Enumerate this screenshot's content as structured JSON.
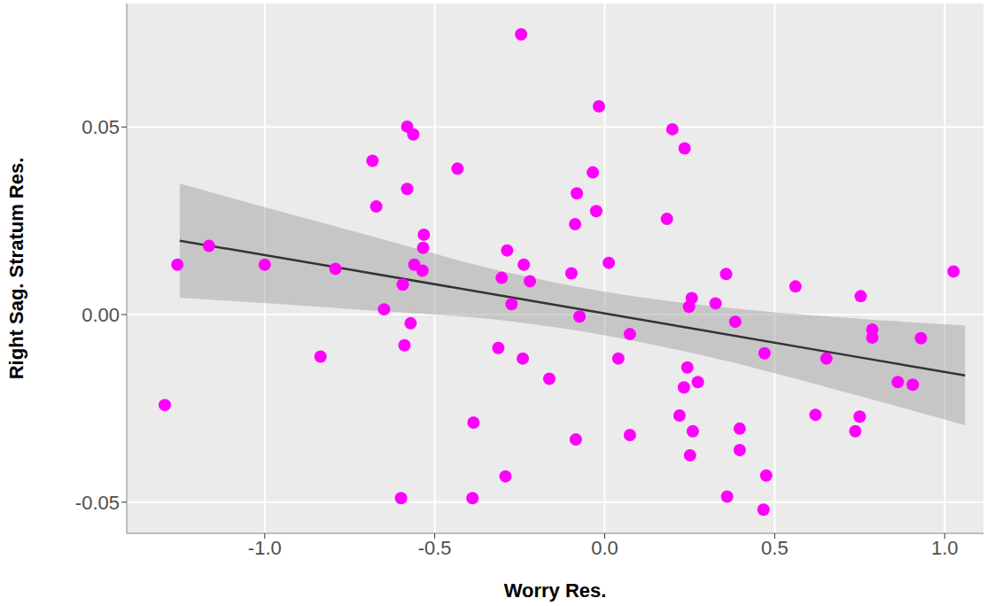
{
  "chart_data": {
    "type": "scatter",
    "x_label": "Worry Res.",
    "y_label": "Right Sag. Stratum Res.",
    "xlim": [
      -1.406,
      1.114
    ],
    "ylim": [
      -0.0583,
      0.0829
    ],
    "xticks": [
      {
        "value": -1,
        "label": "-1.0"
      },
      -0.5,
      {
        "value": 0,
        "label": "0.0"
      },
      0.5,
      {
        "value": 1,
        "label": "1.0"
      }
    ],
    "yticks": [
      -0.05,
      {
        "value": 0,
        "label": "0.00"
      },
      0.05
    ],
    "grid": true,
    "series": [
      {
        "type": "scatter",
        "marker": "circle",
        "color": "#ff00ff",
        "x": [
          -1.294,
          -1.257,
          -1.164,
          -1.0,
          -0.792,
          -0.836,
          -0.683,
          -0.672,
          -0.649,
          -0.581,
          -0.563,
          -0.581,
          -0.594,
          -0.589,
          -0.599,
          -0.571,
          -0.532,
          -0.534,
          -0.56,
          -0.536,
          -0.433,
          -0.386,
          -0.389,
          -0.287,
          -0.303,
          -0.274,
          -0.313,
          -0.292,
          -0.246,
          -0.238,
          -0.22,
          -0.241,
          -0.163,
          -0.098,
          -0.082,
          -0.087,
          -0.074,
          -0.085,
          -0.035,
          -0.025,
          -0.017,
          0.012,
          0.04,
          0.074,
          0.074,
          0.183,
          0.199,
          0.235,
          0.22,
          0.233,
          0.243,
          0.248,
          0.256,
          0.259,
          0.251,
          0.274,
          0.326,
          0.357,
          0.36,
          0.384,
          0.397,
          0.397,
          0.475,
          0.467,
          0.47,
          0.561,
          0.62,
          0.652,
          0.737,
          0.75,
          0.753,
          0.787,
          0.787,
          0.862,
          0.906,
          0.93,
          1.026
        ],
        "values": [
          -0.0241,
          0.0133,
          0.0183,
          0.0133,
          0.0122,
          -0.0112,
          0.041,
          0.0288,
          0.0014,
          0.0501,
          0.048,
          0.0335,
          0.008,
          -0.0082,
          -0.0489,
          -0.0023,
          0.0213,
          0.0178,
          0.0133,
          0.0117,
          0.0389,
          -0.0288,
          -0.0489,
          0.0171,
          0.0098,
          0.0028,
          -0.0089,
          -0.0431,
          0.0747,
          0.0133,
          0.0089,
          -0.0117,
          -0.0171,
          0.011,
          0.0323,
          0.0241,
          -0.0005,
          -0.0333,
          0.0379,
          0.0276,
          0.0555,
          0.0138,
          -0.0117,
          -0.0052,
          -0.0321,
          0.0255,
          0.0494,
          0.0443,
          -0.0269,
          -0.0194,
          -0.0141,
          0.0021,
          0.0044,
          -0.0311,
          -0.0375,
          -0.018,
          0.003,
          0.0108,
          -0.0485,
          -0.0019,
          -0.0304,
          -0.0361,
          -0.0429,
          -0.052,
          -0.0103,
          0.0075,
          -0.0267,
          -0.0117,
          -0.0311,
          -0.0272,
          0.0049,
          -0.004,
          -0.0061,
          -0.018,
          -0.0187,
          -0.0063,
          0.0115
        ]
      },
      {
        "type": "line",
        "line_style": "solid",
        "color": "#333333",
        "band_color": "#999999",
        "x": [
          -1.25,
          -0.75,
          -0.25,
          0,
          0.25,
          0.75,
          1.06
        ],
        "values": [
          0.0197,
          0.012,
          0.0042,
          0.0003,
          -0.0036,
          -0.0114,
          -0.0162
        ],
        "lower": [
          0.0045,
          0.0015,
          -0.0021,
          -0.0055,
          -0.0101,
          -0.0217,
          -0.0295
        ],
        "upper": [
          0.0349,
          0.0225,
          0.0105,
          0.0061,
          0.0029,
          -0.0011,
          -0.0029
        ]
      }
    ]
  }
}
